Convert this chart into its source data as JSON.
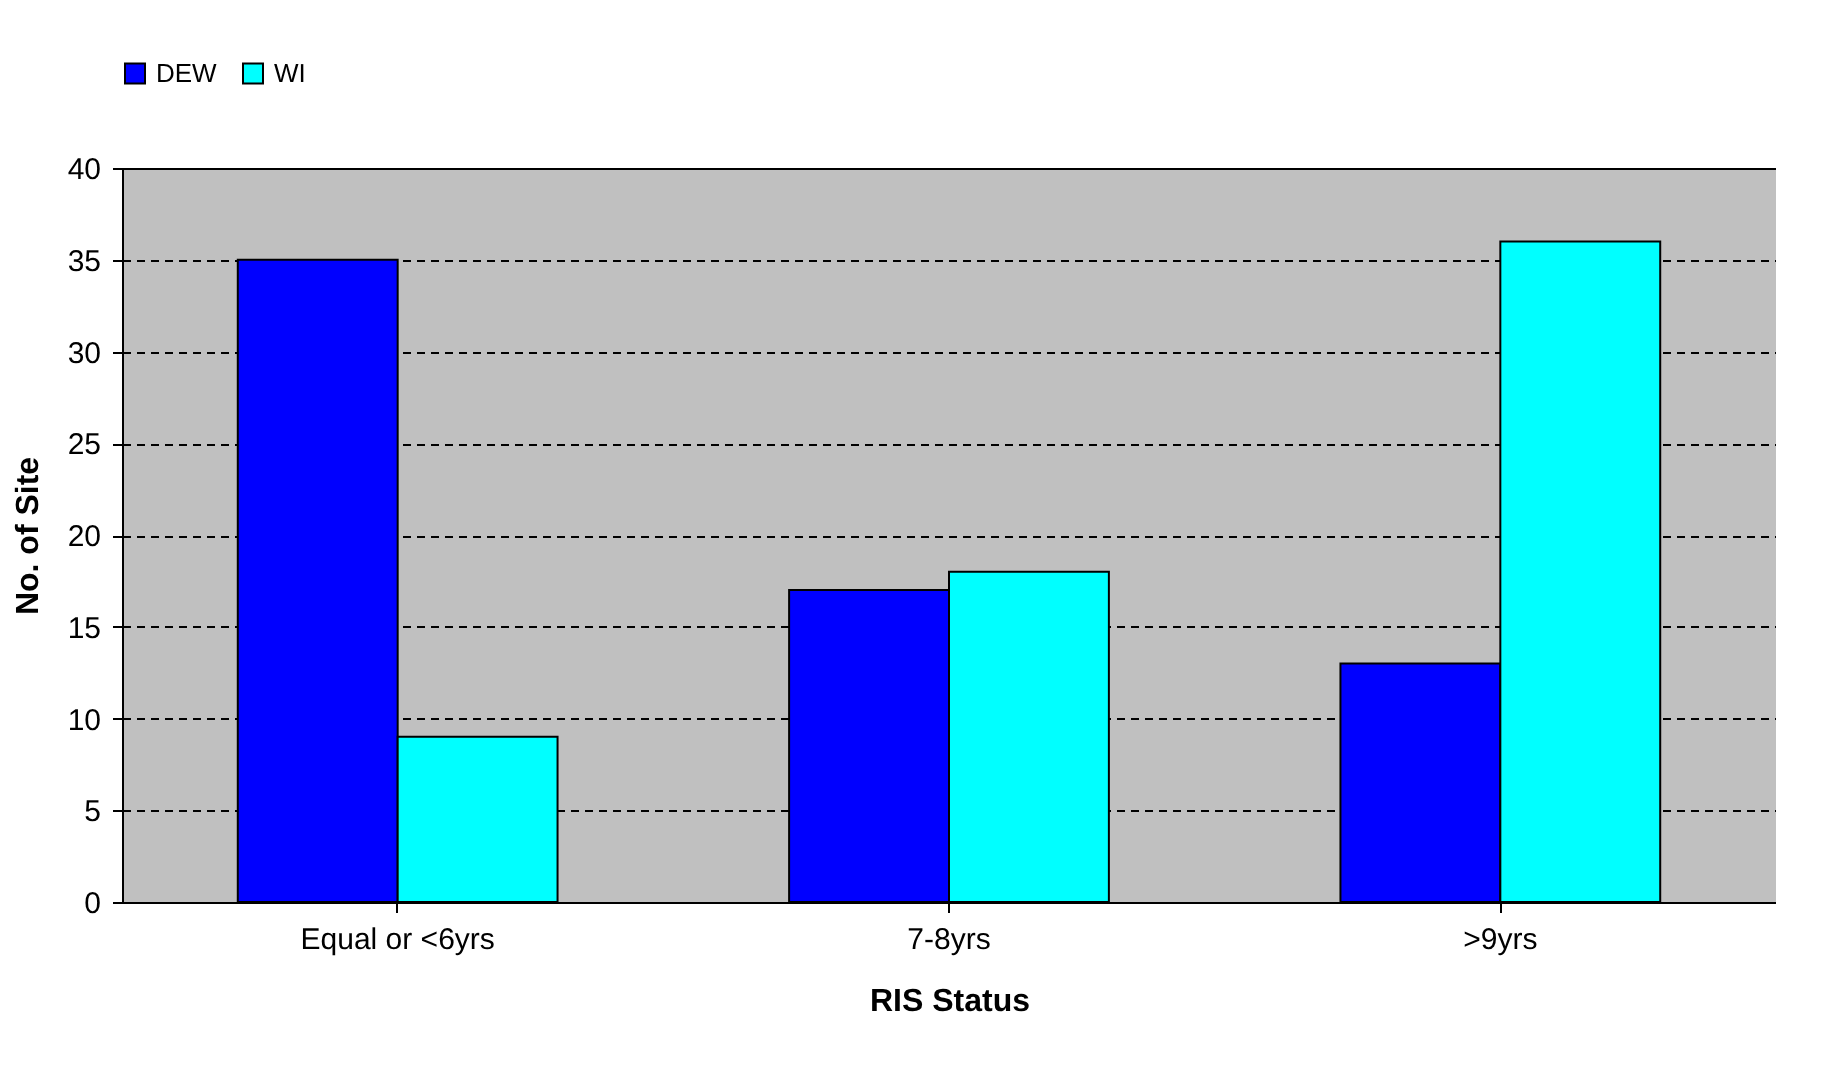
{
  "chart_data": {
    "type": "bar",
    "xlabel": "RIS Status",
    "ylabel": "No. of Site",
    "categories": [
      "Equal or <6yrs",
      "7-8yrs",
      ">9yrs"
    ],
    "series": [
      {
        "name": "DEW",
        "color": "#0000ff",
        "values": [
          35,
          17,
          13
        ]
      },
      {
        "name": "WI",
        "color": "#00ffff",
        "values": [
          9,
          18,
          36
        ]
      }
    ],
    "ylim": [
      0,
      40
    ],
    "yticks": [
      0,
      5,
      10,
      15,
      20,
      25,
      30,
      35,
      40
    ],
    "grid": "y",
    "legend": "top"
  }
}
